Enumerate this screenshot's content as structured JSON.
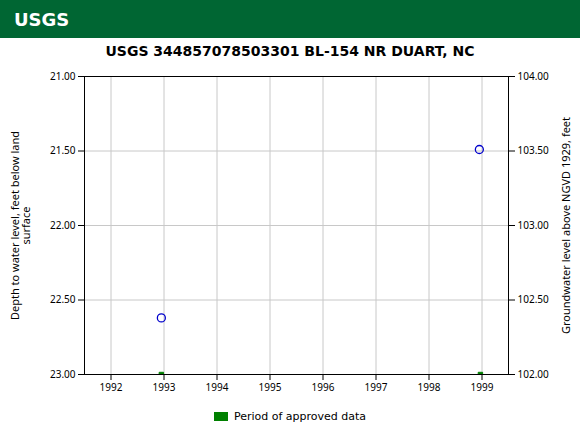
{
  "chart_data": {
    "type": "scatter",
    "title": "USGS 344857078503301 BL-154 NR DUART, NC",
    "annotations": [
      "USGS"
    ],
    "xlim": [
      1991.5,
      1999.5
    ],
    "xticks": [
      1992,
      1993,
      1994,
      1995,
      1996,
      1997,
      1998,
      1999
    ],
    "ylim": [
      23.0,
      21.0
    ],
    "yticks": [
      {
        "value": 21.0,
        "label": "21.00"
      },
      {
        "value": 21.5,
        "label": "21.50"
      },
      {
        "value": 22.0,
        "label": "22.00"
      },
      {
        "value": 22.5,
        "label": "22.50"
      },
      {
        "value": 23.0,
        "label": "23.00"
      }
    ],
    "y2lim": [
      102.0,
      104.0
    ],
    "y2ticks": [
      {
        "value": 104.0,
        "label": "104.00"
      },
      {
        "value": 103.5,
        "label": "103.50"
      },
      {
        "value": 103.0,
        "label": "103.00"
      },
      {
        "value": 102.5,
        "label": "102.50"
      },
      {
        "value": 102.0,
        "label": "102.00"
      }
    ],
    "ylabel": "Depth to water level, feet below land\nsurface",
    "y2label": "Groundwater level above NGVD 1929, feet",
    "grid": true,
    "legend": "bottom",
    "series": [
      {
        "x": [
          1992.95,
          1998.95
        ],
        "values": [
          22.62,
          21.49
        ],
        "color": "#0000cc",
        "marker": "circle"
      },
      {
        "name": "Period of approved data",
        "x": [
          1992.95,
          1998.97
        ],
        "values": [
          23.0,
          23.0
        ],
        "color": "#008000",
        "marker": "square"
      }
    ]
  }
}
